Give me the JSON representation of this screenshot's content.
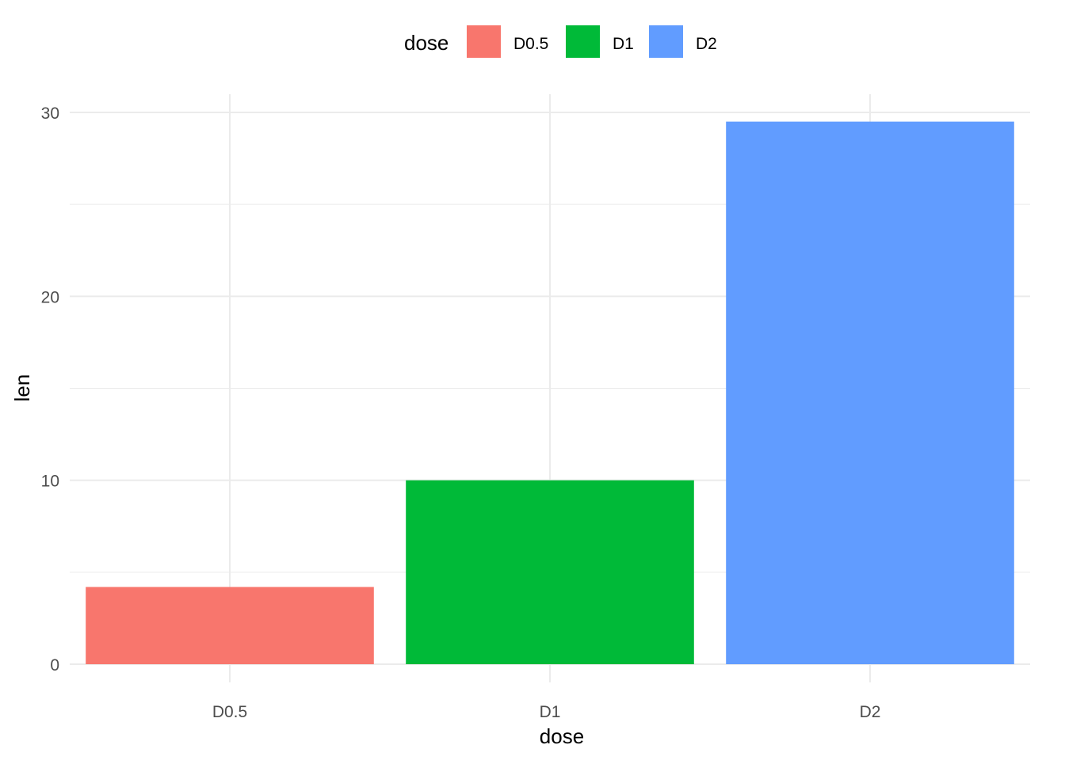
{
  "chart_data": {
    "type": "bar",
    "title": "",
    "xlabel": "dose",
    "ylabel": "len",
    "categories": [
      "D0.5",
      "D1",
      "D2"
    ],
    "values": [
      4.2,
      10.0,
      29.5
    ],
    "colors": [
      "#F8766D",
      "#00BA38",
      "#619CFF"
    ],
    "ylim": [
      0,
      30
    ],
    "yticks": [
      0,
      10,
      20,
      30
    ],
    "ytick_labels": [
      "0",
      "10",
      "20",
      "30"
    ],
    "grid": true,
    "legend": {
      "title": "dose",
      "position": "top",
      "entries": [
        {
          "label": "D0.5",
          "color": "#F8766D"
        },
        {
          "label": "D1",
          "color": "#00BA38"
        },
        {
          "label": "D2",
          "color": "#619CFF"
        }
      ]
    }
  }
}
